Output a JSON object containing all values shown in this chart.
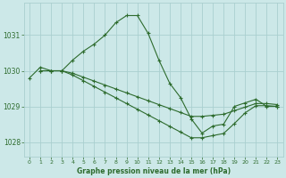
{
  "background_color": "#cce8e8",
  "grid_color": "#aacfcf",
  "line_color": "#2d6b2d",
  "title": "Graphe pression niveau de la mer (hPa)",
  "xlim": [
    -0.5,
    23.5
  ],
  "ylim": [
    1027.6,
    1031.9
  ],
  "yticks": [
    1028,
    1029,
    1030,
    1031
  ],
  "xticks": [
    0,
    1,
    2,
    3,
    4,
    5,
    6,
    7,
    8,
    9,
    10,
    11,
    12,
    13,
    14,
    15,
    16,
    17,
    18,
    19,
    20,
    21,
    22,
    23
  ],
  "series": [
    {
      "x": [
        0,
        1,
        2,
        3,
        4,
        5,
        6,
        7,
        8,
        9,
        10,
        11,
        12,
        13,
        14,
        15,
        16,
        17,
        18,
        19,
        20,
        21,
        22,
        23
      ],
      "y": [
        1029.8,
        1030.1,
        1030.0,
        1030.0,
        1030.3,
        1030.55,
        1030.75,
        1031.0,
        1031.35,
        1031.55,
        1031.55,
        1031.05,
        1030.3,
        1029.65,
        1029.25,
        1028.65,
        1028.25,
        1028.45,
        1028.5,
        1029.0,
        1029.1,
        1029.2,
        1029.0,
        1029.0
      ]
    },
    {
      "x": [
        1,
        2,
        3,
        4,
        5,
        6,
        7,
        8,
        9,
        10,
        11,
        12,
        13,
        14,
        15,
        16,
        17,
        18,
        19,
        20,
        21,
        22,
        23
      ],
      "y": [
        1030.0,
        1030.0,
        1030.0,
        1029.93,
        1029.82,
        1029.71,
        1029.6,
        1029.49,
        1029.38,
        1029.27,
        1029.16,
        1029.05,
        1028.94,
        1028.83,
        1028.72,
        1028.72,
        1028.75,
        1028.78,
        1028.88,
        1028.98,
        1029.08,
        1029.08,
        1029.05
      ]
    },
    {
      "x": [
        1,
        2,
        3,
        4,
        5,
        6,
        7,
        8,
        9,
        10,
        11,
        12,
        13,
        14,
        15,
        16,
        17,
        18,
        19,
        20,
        21,
        22,
        23
      ],
      "y": [
        1030.0,
        1030.0,
        1030.0,
        1029.88,
        1029.72,
        1029.56,
        1029.4,
        1029.24,
        1029.08,
        1028.92,
        1028.76,
        1028.6,
        1028.44,
        1028.28,
        1028.12,
        1028.12,
        1028.18,
        1028.24,
        1028.52,
        1028.82,
        1029.02,
        1029.02,
        1029.0
      ]
    }
  ]
}
